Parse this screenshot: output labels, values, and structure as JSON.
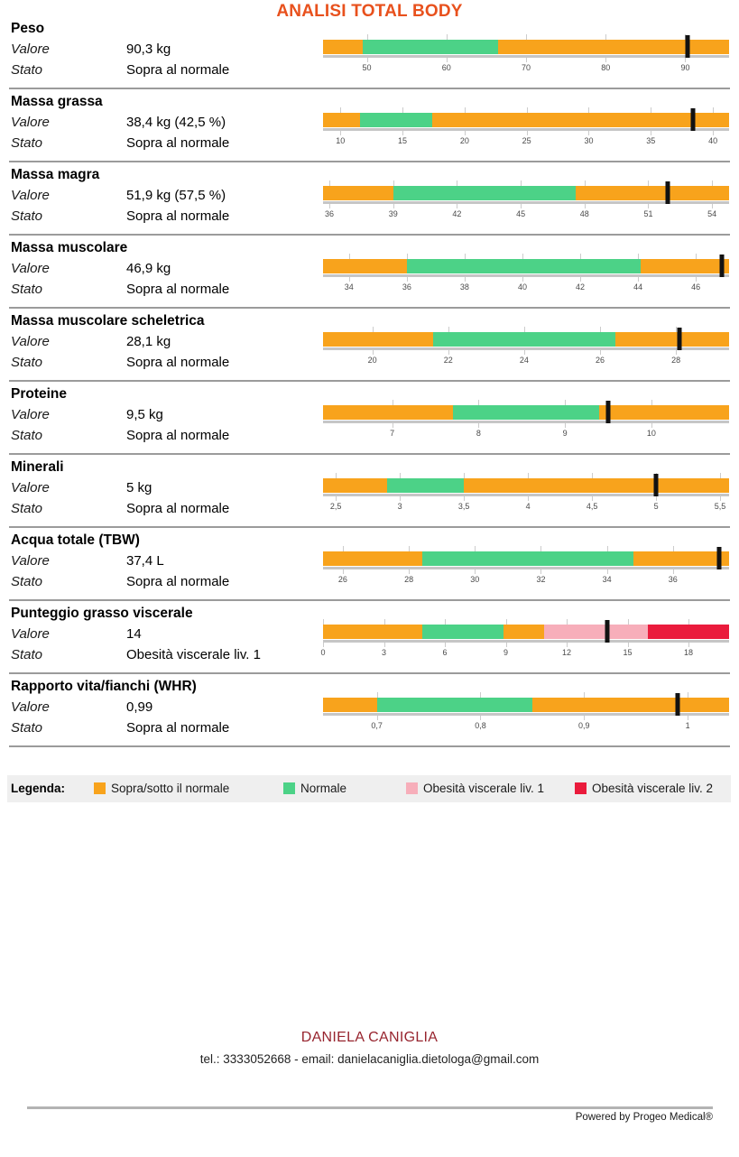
{
  "title": "ANALISI TOTAL BODY",
  "row_labels": {
    "value": "Valore",
    "status": "Stato"
  },
  "colors": {
    "orange": "#F8A31C",
    "green": "#4CD287",
    "pink": "#F7AEBA",
    "red": "#EA1B3C",
    "title": "#E8511D",
    "footer_name": "#97242E",
    "marker": "#121212"
  },
  "metrics": [
    {
      "name": "Peso",
      "value": "90,3 kg",
      "status": "Sopra al normale",
      "bar": {
        "min": 44.5,
        "max": 95.5,
        "marker": 90.3,
        "segments": [
          {
            "color": "orange",
            "from": 44.5,
            "to": 49.5
          },
          {
            "color": "green",
            "from": 49.5,
            "to": 66.5
          },
          {
            "color": "orange",
            "from": 66.5,
            "to": 95.5
          }
        ],
        "ticks": [
          {
            "v": 50,
            "label": "50"
          },
          {
            "v": 60,
            "label": "60"
          },
          {
            "v": 70,
            "label": "70"
          },
          {
            "v": 80,
            "label": "80"
          },
          {
            "v": 90,
            "label": "90"
          }
        ]
      }
    },
    {
      "name": "Massa grassa",
      "value": "38,4 kg (42,5 %)",
      "status": "Sopra al normale",
      "bar": {
        "min": 8.6,
        "max": 41.3,
        "marker": 38.4,
        "segments": [
          {
            "color": "orange",
            "from": 8.6,
            "to": 11.6
          },
          {
            "color": "green",
            "from": 11.6,
            "to": 17.4
          },
          {
            "color": "orange",
            "from": 17.4,
            "to": 41.3
          }
        ],
        "ticks": [
          {
            "v": 10,
            "label": "10"
          },
          {
            "v": 15,
            "label": "15"
          },
          {
            "v": 20,
            "label": "20"
          },
          {
            "v": 25,
            "label": "25"
          },
          {
            "v": 30,
            "label": "30"
          },
          {
            "v": 35,
            "label": "35"
          },
          {
            "v": 40,
            "label": "40"
          }
        ]
      }
    },
    {
      "name": "Massa magra",
      "value": "51,9 kg (57,5 %)",
      "status": "Sopra al normale",
      "bar": {
        "min": 35.7,
        "max": 54.8,
        "marker": 51.9,
        "segments": [
          {
            "color": "orange",
            "from": 35.7,
            "to": 39
          },
          {
            "color": "green",
            "from": 39,
            "to": 47.6
          },
          {
            "color": "orange",
            "from": 47.6,
            "to": 54.8
          }
        ],
        "ticks": [
          {
            "v": 36,
            "label": "36"
          },
          {
            "v": 39,
            "label": "39"
          },
          {
            "v": 42,
            "label": "42"
          },
          {
            "v": 45,
            "label": "45"
          },
          {
            "v": 48,
            "label": "48"
          },
          {
            "v": 51,
            "label": "51"
          },
          {
            "v": 54,
            "label": "54"
          }
        ]
      }
    },
    {
      "name": "Massa muscolare",
      "value": "46,9 kg",
      "status": "Sopra al normale",
      "bar": {
        "min": 33.1,
        "max": 47.15,
        "marker": 46.9,
        "segments": [
          {
            "color": "orange",
            "from": 33.1,
            "to": 36
          },
          {
            "color": "green",
            "from": 36,
            "to": 44.1
          },
          {
            "color": "orange",
            "from": 44.1,
            "to": 47.15
          }
        ],
        "ticks": [
          {
            "v": 34,
            "label": "34"
          },
          {
            "v": 36,
            "label": "36"
          },
          {
            "v": 38,
            "label": "38"
          },
          {
            "v": 40,
            "label": "40"
          },
          {
            "v": 42,
            "label": "42"
          },
          {
            "v": 44,
            "label": "44"
          },
          {
            "v": 46,
            "label": "46"
          }
        ]
      }
    },
    {
      "name": "Massa muscolare scheletrica",
      "value": "28,1 kg",
      "status": "Sopra al normale",
      "bar": {
        "min": 18.7,
        "max": 29.4,
        "marker": 28.1,
        "segments": [
          {
            "color": "orange",
            "from": 18.7,
            "to": 21.6
          },
          {
            "color": "green",
            "from": 21.6,
            "to": 26.4
          },
          {
            "color": "orange",
            "from": 26.4,
            "to": 29.4
          }
        ],
        "ticks": [
          {
            "v": 20,
            "label": "20"
          },
          {
            "v": 22,
            "label": "22"
          },
          {
            "v": 24,
            "label": "24"
          },
          {
            "v": 26,
            "label": "26"
          },
          {
            "v": 28,
            "label": "28"
          }
        ]
      }
    },
    {
      "name": "Proteine",
      "value": "9,5 kg",
      "status": "Sopra al normale",
      "bar": {
        "min": 6.2,
        "max": 10.9,
        "marker": 9.5,
        "segments": [
          {
            "color": "orange",
            "from": 6.2,
            "to": 7.7
          },
          {
            "color": "green",
            "from": 7.7,
            "to": 9.4
          },
          {
            "color": "orange",
            "from": 9.4,
            "to": 10.9
          }
        ],
        "ticks": [
          {
            "v": 7,
            "label": "7"
          },
          {
            "v": 8,
            "label": "8"
          },
          {
            "v": 9,
            "label": "9"
          },
          {
            "v": 10,
            "label": "10"
          }
        ]
      }
    },
    {
      "name": "Minerali",
      "value": "5 kg",
      "status": "Sopra al normale",
      "bar": {
        "min": 2.4,
        "max": 5.57,
        "marker": 5,
        "segments": [
          {
            "color": "orange",
            "from": 2.4,
            "to": 2.9
          },
          {
            "color": "green",
            "from": 2.9,
            "to": 3.5
          },
          {
            "color": "orange",
            "from": 3.5,
            "to": 5.57
          }
        ],
        "ticks": [
          {
            "v": 2.5,
            "label": "2,5"
          },
          {
            "v": 3,
            "label": "3"
          },
          {
            "v": 3.5,
            "label": "3,5"
          },
          {
            "v": 4,
            "label": "4"
          },
          {
            "v": 4.5,
            "label": "4,5"
          },
          {
            "v": 5,
            "label": "5"
          },
          {
            "v": 5.5,
            "label": "5,5"
          }
        ]
      }
    },
    {
      "name": "Acqua totale (TBW)",
      "value": "37,4 L",
      "status": "Sopra al normale",
      "bar": {
        "min": 25.4,
        "max": 37.7,
        "marker": 37.4,
        "segments": [
          {
            "color": "orange",
            "from": 25.4,
            "to": 28.4
          },
          {
            "color": "green",
            "from": 28.4,
            "to": 34.8
          },
          {
            "color": "orange",
            "from": 34.8,
            "to": 37.7
          }
        ],
        "ticks": [
          {
            "v": 26,
            "label": "26"
          },
          {
            "v": 28,
            "label": "28"
          },
          {
            "v": 30,
            "label": "30"
          },
          {
            "v": 32,
            "label": "32"
          },
          {
            "v": 34,
            "label": "34"
          },
          {
            "v": 36,
            "label": "36"
          }
        ]
      }
    },
    {
      "name": "Punteggio grasso viscerale",
      "value": "14",
      "status": "Obesità viscerale liv. 1",
      "bar": {
        "min": 0,
        "max": 20,
        "marker": 14,
        "segments": [
          {
            "color": "orange",
            "from": 0,
            "to": 4.9
          },
          {
            "color": "green",
            "from": 4.9,
            "to": 8.9
          },
          {
            "color": "orange",
            "from": 8.9,
            "to": 10.9
          },
          {
            "color": "pink",
            "from": 10.9,
            "to": 16
          },
          {
            "color": "red",
            "from": 16,
            "to": 20
          }
        ],
        "ticks": [
          {
            "v": 0,
            "label": "0"
          },
          {
            "v": 3,
            "label": "3"
          },
          {
            "v": 6,
            "label": "6"
          },
          {
            "v": 9,
            "label": "9"
          },
          {
            "v": 12,
            "label": "12"
          },
          {
            "v": 15,
            "label": "15"
          },
          {
            "v": 18,
            "label": "18"
          }
        ]
      }
    },
    {
      "name": "Rapporto vita/fianchi (WHR)",
      "value": "0,99",
      "status": "Sopra al normale",
      "bar": {
        "min": 0.648,
        "max": 1.04,
        "marker": 0.99,
        "segments": [
          {
            "color": "orange",
            "from": 0.648,
            "to": 0.7
          },
          {
            "color": "green",
            "from": 0.7,
            "to": 0.85
          },
          {
            "color": "orange",
            "from": 0.85,
            "to": 1.04
          }
        ],
        "ticks": [
          {
            "v": 0.7,
            "label": "0,7"
          },
          {
            "v": 0.8,
            "label": "0,8"
          },
          {
            "v": 0.9,
            "label": "0,9"
          },
          {
            "v": 1,
            "label": "1"
          }
        ]
      }
    }
  ],
  "legend": {
    "label": "Legenda:",
    "items": [
      {
        "label": "Sopra/sotto il normale",
        "color": "orange"
      },
      {
        "label": "Normale",
        "color": "green"
      },
      {
        "label": "Obesità viscerale liv. 1",
        "color": "pink"
      },
      {
        "label": "Obesità viscerale liv. 2",
        "color": "red"
      }
    ]
  },
  "footer": {
    "name": "DANIELA CANIGLIA",
    "contact": "tel.: 3333052668 - email: danielacaniglia.dietologa@gmail.com",
    "powered": "Powered by Progeo Medical®"
  }
}
